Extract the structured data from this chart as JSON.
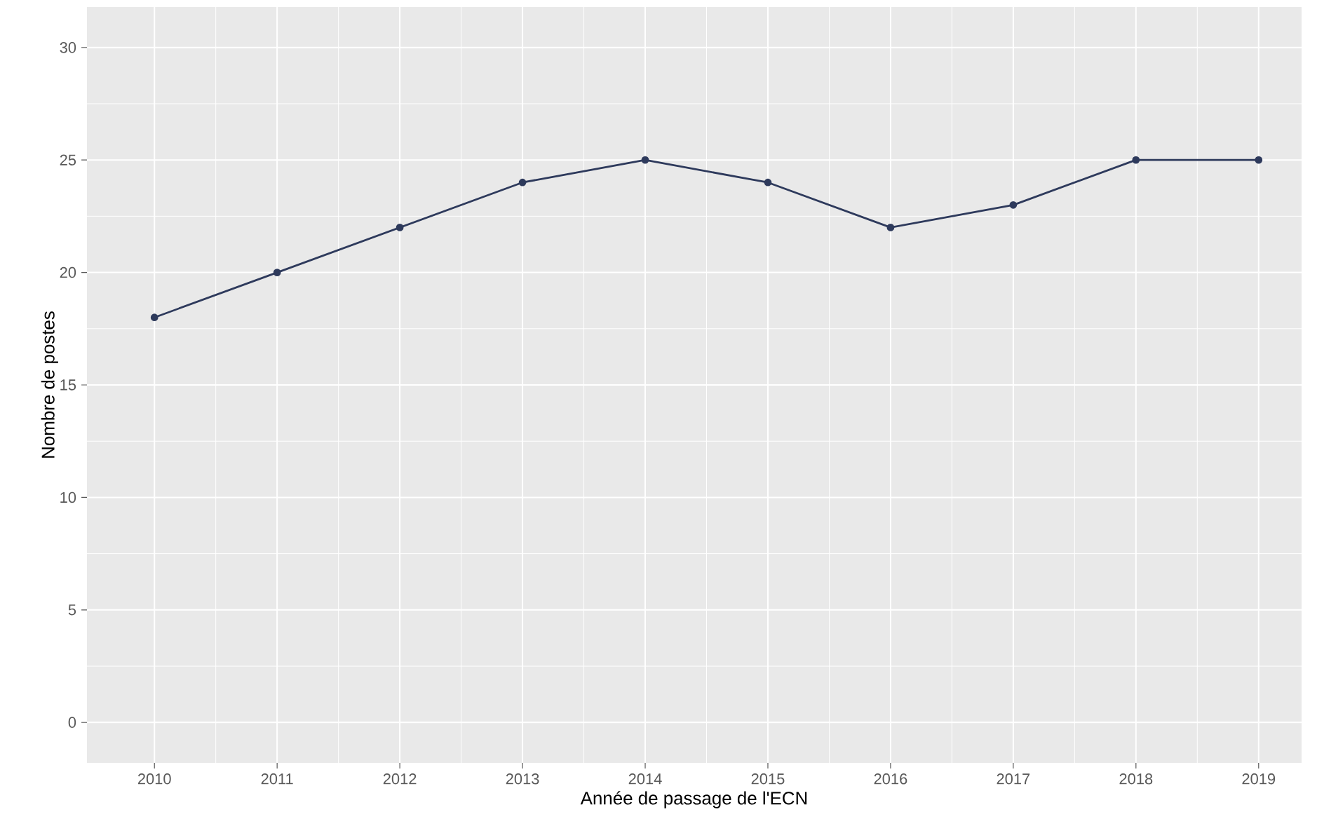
{
  "chart_data": {
    "type": "line",
    "xlabel": "Année de passage de l'ECN",
    "ylabel": "Nombre de postes",
    "x": [
      2010,
      2011,
      2012,
      2013,
      2014,
      2015,
      2016,
      2017,
      2018,
      2019
    ],
    "series": [
      {
        "color": "#2e3a5c",
        "values": [
          18,
          20,
          22,
          24,
          25,
          24,
          22,
          23,
          25,
          25
        ]
      }
    ],
    "xlim": [
      2009.45,
      2019.35
    ],
    "ylim": [
      -1.8,
      31.8
    ],
    "xticks": [
      2010,
      2011,
      2012,
      2013,
      2014,
      2015,
      2016,
      2017,
      2018,
      2019
    ],
    "yticks": [
      0,
      5,
      10,
      15,
      20,
      25,
      30
    ],
    "grid": true,
    "marker": "circle",
    "line_style": "solid"
  }
}
